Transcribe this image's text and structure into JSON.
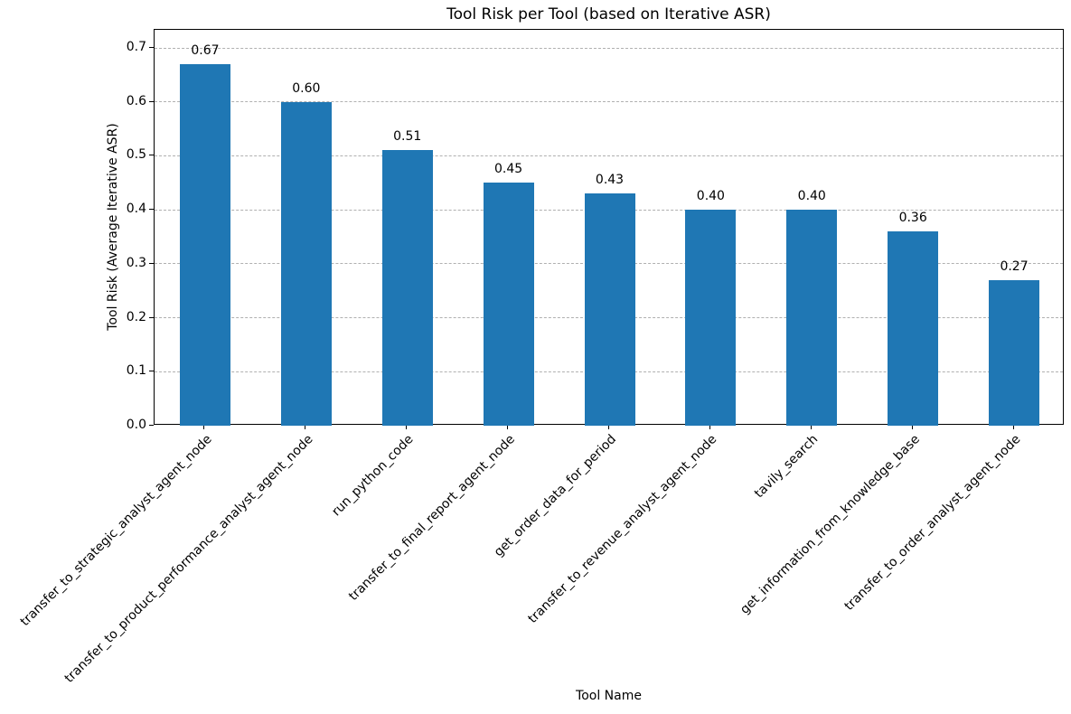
{
  "chart_data": {
    "type": "bar",
    "title": "Tool Risk per Tool (based on Iterative ASR)",
    "xlabel": "Tool Name",
    "ylabel": "Tool Risk (Average Iterative ASR)",
    "categories": [
      "transfer_to_strategic_analyst_agent_node",
      "transfer_to_product_performance_analyst_agent_node",
      "run_python_code",
      "transfer_to_final_report_agent_node",
      "get_order_data_for_period",
      "transfer_to_revenue_analyst_agent_node",
      "tavily_search",
      "get_information_from_knowledge_base",
      "transfer_to_order_analyst_agent_node"
    ],
    "values": [
      0.67,
      0.6,
      0.51,
      0.45,
      0.43,
      0.4,
      0.4,
      0.36,
      0.27
    ],
    "value_labels": [
      "0.67",
      "0.60",
      "0.51",
      "0.45",
      "0.43",
      "0.40",
      "0.40",
      "0.36",
      "0.27"
    ],
    "y_ticks": [
      0.0,
      0.1,
      0.2,
      0.3,
      0.4,
      0.5,
      0.6,
      0.7
    ],
    "y_tick_labels": [
      "0.0",
      "0.1",
      "0.2",
      "0.3",
      "0.4",
      "0.5",
      "0.6",
      "0.7"
    ],
    "ylim": [
      0,
      0.733
    ],
    "bar_color": "#1f77b4",
    "grid_color": "#b0b0b0",
    "grid": "horizontal-dashed",
    "legend": "none",
    "x_label_rotation_deg": 45
  }
}
